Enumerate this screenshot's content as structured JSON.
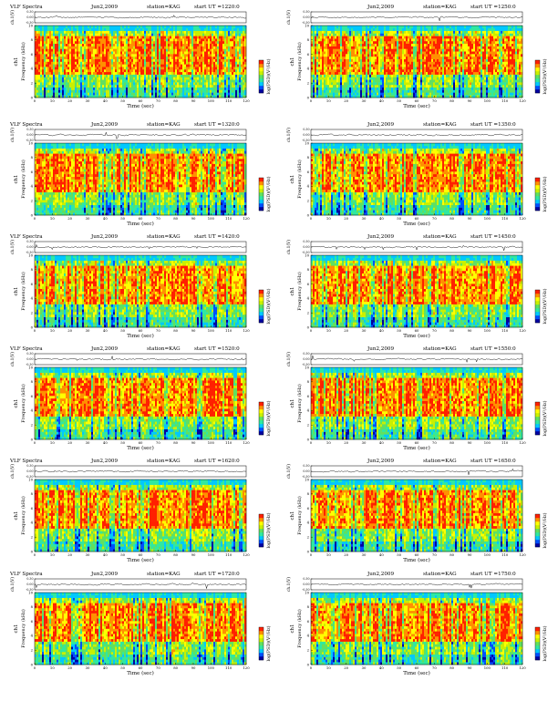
{
  "page": {
    "rows": 6,
    "cols": 2
  },
  "colors": {
    "scale": [
      "#0000a0",
      "#0050ff",
      "#00c8ff",
      "#30e8a0",
      "#60e060",
      "#c8f000",
      "#ffff00",
      "#ff9000",
      "#ff2000"
    ],
    "trace": "#000000",
    "frame": "#000000"
  },
  "labels": {
    "time_axis": "Time (sec)",
    "freq_axis": "Frequency (kHz)",
    "ch_axis": "ch.1(V)",
    "ch1_tag": "ch1",
    "colorbar_label": "log(PSD)(V²/Hz)"
  },
  "chart_data": [
    {
      "type": "heatmap",
      "title": "VLF Spectra",
      "date": "Jun2,2009",
      "station": "station=KAG",
      "start": "start UT =1220:0",
      "x": [
        0,
        120
      ],
      "xticks": [
        0,
        10,
        20,
        30,
        40,
        50,
        60,
        70,
        80,
        90,
        100,
        110,
        120
      ],
      "ylim_freq": [
        0,
        10
      ],
      "yticks_freq": [
        0,
        2,
        4,
        6,
        8,
        10
      ],
      "ylim_ch": [
        -0.3,
        0.3
      ],
      "yticks_ch": [
        "-0.30",
        "0.00",
        "0.30"
      ]
    },
    {
      "type": "heatmap",
      "title": "",
      "date": "Jun2,2009",
      "station": "station=KAG",
      "start": "start UT =1250:0",
      "x": [
        0,
        120
      ],
      "xticks": [
        0,
        10,
        20,
        30,
        40,
        50,
        60,
        70,
        80,
        90,
        100,
        110,
        120
      ],
      "ylim_freq": [
        0,
        10
      ],
      "yticks_freq": [
        0,
        2,
        4,
        6,
        8,
        10
      ],
      "ylim_ch": [
        -0.3,
        0.3
      ],
      "yticks_ch": [
        "-0.30",
        "0.00",
        "0.30"
      ]
    },
    {
      "type": "heatmap",
      "title": "VLF Spectra",
      "date": "Jun2,2009",
      "station": "station=KAG",
      "start": "start UT =1320:0",
      "x": [
        0,
        120
      ],
      "xticks": [
        0,
        10,
        20,
        30,
        40,
        50,
        60,
        70,
        80,
        90,
        100,
        110,
        120
      ],
      "ylim_freq": [
        0,
        10
      ],
      "yticks_freq": [
        0,
        2,
        4,
        6,
        8,
        10
      ],
      "ylim_ch": [
        -0.3,
        0.3
      ],
      "yticks_ch": [
        "-0.30",
        "0.00",
        "0.30"
      ]
    },
    {
      "type": "heatmap",
      "title": "",
      "date": "Jun2,2009",
      "station": "station=KAG",
      "start": "start UT =1350:0",
      "x": [
        0,
        120
      ],
      "xticks": [
        0,
        10,
        20,
        30,
        40,
        50,
        60,
        70,
        80,
        90,
        100,
        110,
        120
      ],
      "ylim_freq": [
        0,
        10
      ],
      "yticks_freq": [
        0,
        2,
        4,
        6,
        8,
        10
      ],
      "ylim_ch": [
        -0.3,
        0.3
      ],
      "yticks_ch": [
        "-0.30",
        "0.00",
        "0.30"
      ]
    },
    {
      "type": "heatmap",
      "title": "VLF Spectra",
      "date": "Jun2,2009",
      "station": "station=KAG",
      "start": "start UT =1420:0",
      "x": [
        0,
        120
      ],
      "xticks": [
        0,
        10,
        20,
        30,
        40,
        50,
        60,
        70,
        80,
        90,
        100,
        110,
        120
      ],
      "ylim_freq": [
        0,
        10
      ],
      "yticks_freq": [
        0,
        2,
        4,
        6,
        8,
        10
      ],
      "ylim_ch": [
        -0.3,
        0.3
      ],
      "yticks_ch": [
        "-0.30",
        "0.00",
        "0.30"
      ]
    },
    {
      "type": "heatmap",
      "title": "",
      "date": "Jun2,2009",
      "station": "station=KAG",
      "start": "start UT =1450:0",
      "x": [
        0,
        120
      ],
      "xticks": [
        0,
        10,
        20,
        30,
        40,
        50,
        60,
        70,
        80,
        90,
        100,
        110,
        120
      ],
      "ylim_freq": [
        0,
        10
      ],
      "yticks_freq": [
        0,
        2,
        4,
        6,
        8,
        10
      ],
      "ylim_ch": [
        -0.3,
        0.3
      ],
      "yticks_ch": [
        "-0.30",
        "0.00",
        "0.30"
      ]
    },
    {
      "type": "heatmap",
      "title": "VLF Spectra",
      "date": "Jun2,2009",
      "station": "station=KAG",
      "start": "start UT =1520:0",
      "x": [
        0,
        120
      ],
      "xticks": [
        0,
        10,
        20,
        30,
        40,
        50,
        60,
        70,
        80,
        90,
        100,
        110,
        120
      ],
      "ylim_freq": [
        0,
        10
      ],
      "yticks_freq": [
        0,
        2,
        4,
        6,
        8,
        10
      ],
      "ylim_ch": [
        -0.3,
        0.3
      ],
      "yticks_ch": [
        "-0.30",
        "0.00",
        "0.30"
      ]
    },
    {
      "type": "heatmap",
      "title": "",
      "date": "Jun2,2009",
      "station": "station=KAG",
      "start": "start UT =1550:0",
      "x": [
        0,
        120
      ],
      "xticks": [
        0,
        10,
        20,
        30,
        40,
        50,
        60,
        70,
        80,
        90,
        100,
        110,
        120
      ],
      "ylim_freq": [
        0,
        10
      ],
      "yticks_freq": [
        0,
        2,
        4,
        6,
        8,
        10
      ],
      "ylim_ch": [
        -0.3,
        0.3
      ],
      "yticks_ch": [
        "-0.30",
        "0.00",
        "0.30"
      ]
    },
    {
      "type": "heatmap",
      "title": "VLF Spectra",
      "date": "Jun2,2009",
      "station": "station=KAG",
      "start": "start UT =1620:0",
      "x": [
        0,
        120
      ],
      "xticks": [
        0,
        10,
        20,
        30,
        40,
        50,
        60,
        70,
        80,
        90,
        100,
        110,
        120
      ],
      "ylim_freq": [
        0,
        10
      ],
      "yticks_freq": [
        0,
        2,
        4,
        6,
        8,
        10
      ],
      "ylim_ch": [
        -0.3,
        0.3
      ],
      "yticks_ch": [
        "-0.30",
        "0.00",
        "0.30"
      ]
    },
    {
      "type": "heatmap",
      "title": "",
      "date": "Jun2,2009",
      "station": "station=KAG",
      "start": "start UT =1650:0",
      "x": [
        0,
        120
      ],
      "xticks": [
        0,
        10,
        20,
        30,
        40,
        50,
        60,
        70,
        80,
        90,
        100,
        110,
        120
      ],
      "ylim_freq": [
        0,
        10
      ],
      "yticks_freq": [
        0,
        2,
        4,
        6,
        8,
        10
      ],
      "ylim_ch": [
        -0.3,
        0.3
      ],
      "yticks_ch": [
        "-0.30",
        "0.00",
        "0.30"
      ]
    },
    {
      "type": "heatmap",
      "title": "VLF Spectra",
      "date": "Jun2,2009",
      "station": "station=KAG",
      "start": "start UT =1720:0",
      "x": [
        0,
        120
      ],
      "xticks": [
        0,
        10,
        20,
        30,
        40,
        50,
        60,
        70,
        80,
        90,
        100,
        110,
        120
      ],
      "ylim_freq": [
        0,
        10
      ],
      "yticks_freq": [
        0,
        2,
        4,
        6,
        8,
        10
      ],
      "ylim_ch": [
        -0.3,
        0.3
      ],
      "yticks_ch": [
        "-0.30",
        "0.00",
        "0.30"
      ]
    },
    {
      "type": "heatmap",
      "title": "",
      "date": "Jun2,2009",
      "station": "station=KAG",
      "start": "start UT =1750:0",
      "x": [
        0,
        120
      ],
      "xticks": [
        0,
        10,
        20,
        30,
        40,
        50,
        60,
        70,
        80,
        90,
        100,
        110,
        120
      ],
      "ylim_freq": [
        0,
        10
      ],
      "yticks_freq": [
        0,
        2,
        4,
        6,
        8,
        10
      ],
      "ylim_ch": [
        -0.3,
        0.3
      ],
      "yticks_ch": [
        "-0.30",
        "0.00",
        "0.30"
      ]
    }
  ]
}
